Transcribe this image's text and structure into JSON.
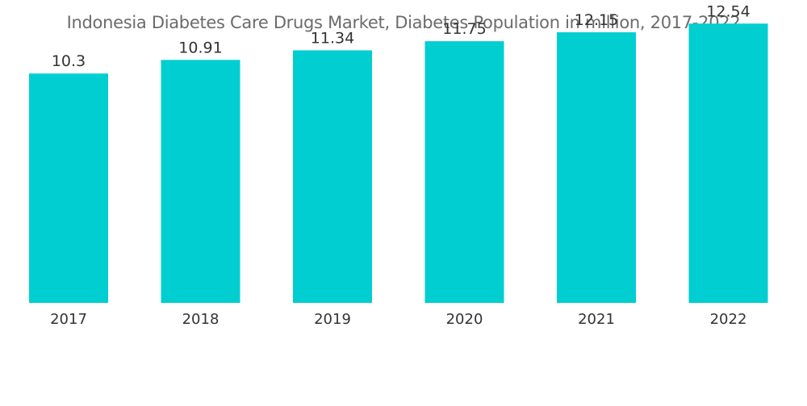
{
  "chart_data": {
    "type": "bar",
    "title": "Indonesia Diabetes Care Drugs Market, Diabetes Population in million, 2017-2022",
    "xlabel": "",
    "ylabel": "",
    "categories": [
      "2017",
      "2018",
      "2019",
      "2020",
      "2021",
      "2022"
    ],
    "values": [
      10.3,
      10.91,
      11.34,
      11.75,
      12.15,
      12.54
    ],
    "value_labels": [
      "10.3",
      "10.91",
      "11.34",
      "11.75",
      "12.15",
      "12.54"
    ],
    "ylim": [
      0,
      13.6
    ],
    "grid": false,
    "legend": "none",
    "bar_color": "#00CED1"
  }
}
